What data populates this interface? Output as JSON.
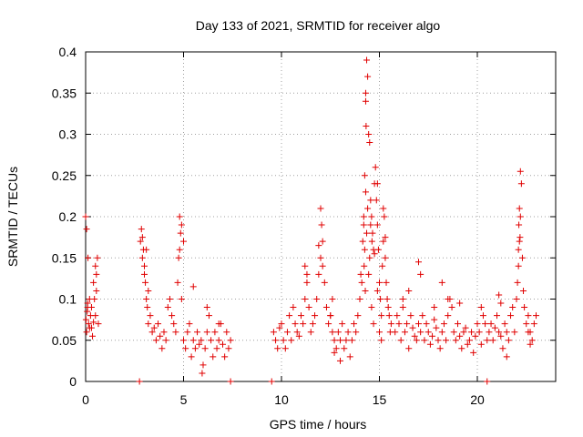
{
  "chart_data": {
    "type": "scatter",
    "title": "Day 133 of 2021, SRMTID for receiver algo",
    "xlabel": "GPS time / hours",
    "ylabel": "SRMTID / TECUs",
    "xlim": [
      0,
      24
    ],
    "ylim": [
      0,
      0.4
    ],
    "xticks": [
      0,
      5,
      10,
      15,
      20
    ],
    "xtick_labels": [
      "0",
      "5",
      "10",
      "15",
      "20"
    ],
    "yticks": [
      0,
      0.05,
      0.1,
      0.15,
      0.2,
      0.25,
      0.3,
      0.35,
      0.4
    ],
    "ytick_labels": [
      "0",
      "0.05",
      "0.1",
      "0.15",
      "0.2",
      "0.25",
      "0.3",
      "0.35",
      "0.4"
    ],
    "grid": true,
    "marker": "plus",
    "color": "#e00000",
    "series": [
      {
        "name": "SRMTID",
        "x": [
          0.0,
          0.05,
          0.1,
          0.12,
          0.15,
          0.2,
          0.25,
          0.3,
          0.35,
          0.4,
          0.45,
          0.5,
          0.55,
          0.6,
          0.65,
          0.3,
          0.5,
          0.55,
          0.02,
          0.05,
          0.08,
          0.1,
          0.2,
          0.4,
          2.8,
          2.85,
          2.9,
          2.95,
          3.0,
          3.05,
          3.1,
          3.15,
          3.2,
          3.3,
          3.4,
          3.5,
          3.6,
          3.7,
          3.8,
          3.9,
          4.0,
          4.1,
          4.2,
          4.3,
          4.4,
          4.5,
          4.6,
          4.7,
          4.75,
          4.8,
          4.85,
          4.9,
          5.0,
          5.1,
          5.2,
          5.3,
          5.4,
          5.5,
          5.6,
          5.7,
          5.8,
          5.9,
          6.0,
          6.1,
          6.2,
          6.3,
          6.4,
          6.5,
          6.6,
          6.7,
          6.8,
          6.9,
          7.0,
          7.1,
          7.2,
          7.3,
          7.4,
          2.9,
          3.0,
          3.1,
          3.2,
          4.9,
          5.0,
          4.8,
          5.5,
          5.95,
          6.2,
          6.8,
          9.6,
          9.7,
          9.8,
          9.9,
          10.0,
          10.1,
          10.2,
          10.3,
          10.4,
          10.5,
          10.6,
          10.7,
          10.8,
          10.9,
          11.0,
          11.1,
          11.2,
          11.3,
          11.4,
          11.5,
          11.6,
          11.7,
          11.8,
          11.9,
          12.0,
          12.1,
          12.2,
          12.3,
          12.4,
          12.5,
          12.6,
          12.7,
          12.8,
          12.9,
          13.0,
          13.1,
          13.2,
          13.3,
          13.4,
          13.5,
          13.6,
          13.7,
          13.8,
          13.9,
          12.0,
          12.05,
          11.9,
          12.1,
          11.2,
          11.3,
          12.5,
          12.6,
          13.0,
          12.7,
          14.0,
          14.05,
          14.1,
          14.15,
          14.2,
          14.25,
          14.3,
          14.35,
          14.4,
          14.45,
          14.5,
          14.55,
          14.6,
          14.65,
          14.7,
          14.75,
          14.8,
          14.85,
          14.9,
          14.95,
          15.0,
          15.05,
          15.1,
          15.15,
          15.2,
          15.25,
          15.3,
          15.35,
          15.4,
          15.45,
          15.5,
          15.55,
          15.6,
          14.2,
          14.25,
          14.22,
          14.3,
          14.28,
          14.35,
          14.4,
          14.45,
          14.5,
          14.3,
          14.32,
          14.6,
          14.7,
          15.0,
          15.1,
          14.9,
          14.55,
          14.62,
          14.75,
          14.9,
          15.2,
          15.3,
          15.8,
          15.9,
          16.0,
          16.1,
          16.2,
          16.3,
          16.4,
          16.5,
          16.6,
          16.7,
          16.8,
          16.9,
          17.0,
          17.1,
          17.2,
          17.3,
          17.4,
          17.5,
          17.6,
          17.7,
          17.8,
          17.9,
          18.0,
          18.1,
          18.2,
          18.3,
          18.4,
          18.5,
          18.6,
          18.7,
          18.8,
          18.9,
          19.0,
          19.1,
          19.2,
          19.3,
          19.4,
          19.5,
          19.6,
          19.7,
          19.8,
          19.9,
          20.0,
          20.1,
          20.2,
          20.3,
          20.4,
          20.5,
          17.0,
          17.1,
          16.5,
          18.2,
          18.5,
          19.1,
          20.2,
          16.2,
          17.8,
          20.6,
          20.7,
          20.8,
          20.9,
          21.0,
          21.1,
          21.2,
          21.3,
          21.4,
          21.5,
          21.6,
          21.7,
          21.8,
          21.9,
          22.0,
          22.05,
          22.1,
          22.15,
          22.2,
          22.25,
          22.3,
          22.35,
          22.4,
          22.5,
          22.6,
          22.7,
          22.8,
          22.9,
          23.0,
          22.1,
          22.15,
          22.2,
          22.12,
          22.18,
          21.1,
          21.2,
          21.5,
          22.6,
          22.7,
          2.75,
          7.4,
          9.5,
          20.5
        ],
        "y": [
          0.2,
          0.185,
          0.09,
          0.15,
          0.07,
          0.1,
          0.08,
          0.065,
          0.055,
          0.12,
          0.1,
          0.08,
          0.13,
          0.15,
          0.07,
          0.09,
          0.14,
          0.11,
          0.075,
          0.06,
          0.085,
          0.095,
          0.065,
          0.072,
          0.17,
          0.185,
          0.15,
          0.16,
          0.13,
          0.12,
          0.1,
          0.09,
          0.07,
          0.08,
          0.06,
          0.065,
          0.05,
          0.07,
          0.055,
          0.04,
          0.06,
          0.05,
          0.09,
          0.1,
          0.08,
          0.07,
          0.06,
          0.12,
          0.15,
          0.2,
          0.18,
          0.1,
          0.05,
          0.04,
          0.06,
          0.07,
          0.03,
          0.05,
          0.04,
          0.06,
          0.045,
          0.05,
          0.02,
          0.04,
          0.06,
          0.08,
          0.05,
          0.03,
          0.06,
          0.04,
          0.05,
          0.07,
          0.045,
          0.03,
          0.06,
          0.04,
          0.05,
          0.175,
          0.14,
          0.16,
          0.11,
          0.19,
          0.17,
          0.16,
          0.115,
          0.01,
          0.09,
          0.07,
          0.06,
          0.05,
          0.04,
          0.065,
          0.07,
          0.05,
          0.04,
          0.06,
          0.08,
          0.05,
          0.09,
          0.07,
          0.06,
          0.055,
          0.08,
          0.07,
          0.1,
          0.12,
          0.09,
          0.06,
          0.07,
          0.08,
          0.1,
          0.13,
          0.15,
          0.14,
          0.12,
          0.09,
          0.07,
          0.08,
          0.06,
          0.05,
          0.04,
          0.06,
          0.05,
          0.07,
          0.04,
          0.05,
          0.06,
          0.03,
          0.05,
          0.07,
          0.06,
          0.08,
          0.21,
          0.19,
          0.165,
          0.17,
          0.14,
          0.13,
          0.08,
          0.1,
          0.025,
          0.035,
          0.1,
          0.13,
          0.12,
          0.17,
          0.19,
          0.25,
          0.34,
          0.39,
          0.37,
          0.3,
          0.29,
          0.22,
          0.2,
          0.18,
          0.16,
          0.24,
          0.26,
          0.22,
          0.19,
          0.16,
          0.12,
          0.1,
          0.08,
          0.14,
          0.17,
          0.2,
          0.15,
          0.12,
          0.1,
          0.09,
          0.08,
          0.06,
          0.07,
          0.2,
          0.16,
          0.14,
          0.23,
          0.11,
          0.18,
          0.21,
          0.13,
          0.15,
          0.35,
          0.31,
          0.09,
          0.07,
          0.06,
          0.05,
          0.24,
          0.19,
          0.17,
          0.155,
          0.11,
          0.21,
          0.175,
          0.06,
          0.08,
          0.07,
          0.05,
          0.09,
          0.06,
          0.07,
          0.04,
          0.08,
          0.065,
          0.055,
          0.05,
          0.07,
          0.06,
          0.08,
          0.05,
          0.07,
          0.06,
          0.045,
          0.055,
          0.09,
          0.065,
          0.05,
          0.04,
          0.06,
          0.07,
          0.05,
          0.08,
          0.1,
          0.09,
          0.06,
          0.05,
          0.07,
          0.055,
          0.04,
          0.06,
          0.065,
          0.045,
          0.05,
          0.06,
          0.035,
          0.055,
          0.07,
          0.06,
          0.045,
          0.08,
          0.07,
          0.05,
          0.145,
          0.13,
          0.11,
          0.12,
          0.1,
          0.095,
          0.09,
          0.1,
          0.075,
          0.06,
          0.07,
          0.05,
          0.065,
          0.08,
          0.06,
          0.055,
          0.04,
          0.07,
          0.06,
          0.05,
          0.08,
          0.09,
          0.06,
          0.1,
          0.12,
          0.14,
          0.17,
          0.2,
          0.24,
          0.15,
          0.11,
          0.09,
          0.07,
          0.08,
          0.06,
          0.05,
          0.07,
          0.08,
          0.16,
          0.21,
          0.255,
          0.19,
          0.175,
          0.105,
          0.095,
          0.03,
          0.06,
          0.045,
          0.0,
          0.0,
          0.0,
          0.0
        ]
      }
    ]
  }
}
